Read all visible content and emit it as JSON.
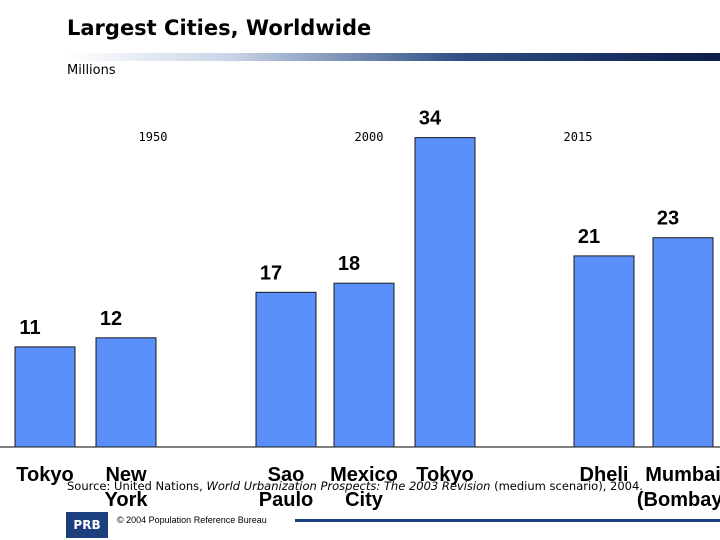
{
  "title": "Largest Cities, Worldwide",
  "unit_label": "Millions",
  "source": {
    "prefix": "Source: United Nations, ",
    "publication": "World Urbanization Prospects: The 2003 Revision",
    "suffix": " (medium scenario), 2004."
  },
  "footer": {
    "logo_text": "PRB",
    "credit": "© 2004 Population Reference Bureau"
  },
  "colors": {
    "bar": "#5b8ff9",
    "bar_stroke": "#1a1a1a",
    "footer_accent": "#1c3f7d"
  },
  "chart_data": {
    "type": "bar",
    "title": "Largest Cities, Worldwide",
    "ylabel": "Millions",
    "ylim": [
      0,
      37
    ],
    "grid": false,
    "groups": [
      {
        "year": "1950",
        "categories": [
          "Tokyo",
          "New York"
        ],
        "values": [
          11,
          12
        ]
      },
      {
        "year": "2000",
        "categories": [
          "Sao Paulo",
          "Mexico City",
          "Tokyo"
        ],
        "values": [
          17,
          18,
          34
        ]
      },
      {
        "year": "2015",
        "categories": [
          "Dheli",
          "Mumbai (Bombay)"
        ],
        "values": [
          21,
          23
        ]
      }
    ],
    "category_lines": [
      [
        "Tokyo"
      ],
      [
        "New",
        "York"
      ],
      [
        "Sao",
        "Paulo"
      ],
      [
        "Mexico",
        "City"
      ],
      [
        "Tokyo"
      ],
      [
        "Dheli"
      ],
      [
        "Mumbai",
        "(Bombay)"
      ]
    ]
  }
}
